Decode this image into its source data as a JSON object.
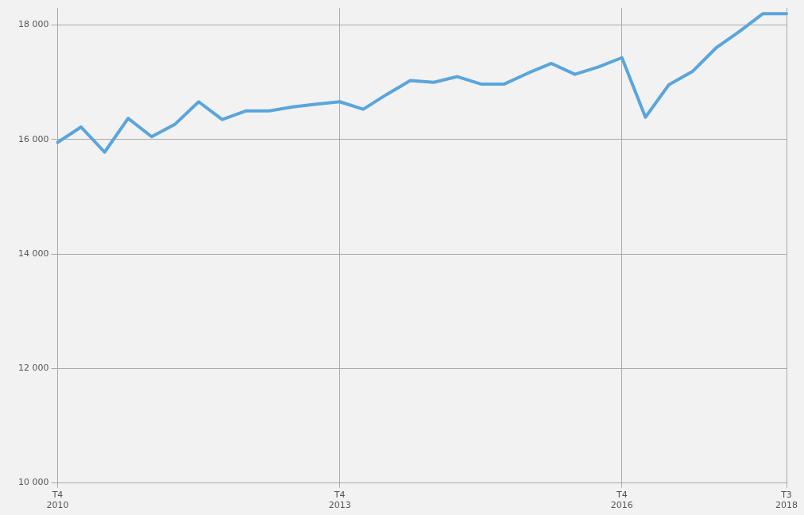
{
  "chart_data": {
    "type": "line",
    "categories": [
      "T4\n2010",
      null,
      null,
      null,
      null,
      null,
      null,
      null,
      null,
      null,
      null,
      null,
      "T4\n2013",
      null,
      null,
      null,
      null,
      null,
      null,
      null,
      null,
      null,
      null,
      null,
      "T4\n2016",
      null,
      null,
      null,
      null,
      null,
      null,
      "T3\n2018"
    ],
    "series": [
      {
        "color": "#5aa5dc",
        "values": [
          15950,
          16220,
          15780,
          16370,
          16050,
          16270,
          16660,
          16350,
          16500,
          16500,
          16570,
          16620,
          16660,
          16530,
          16790,
          17030,
          17000,
          17100,
          16970,
          16970,
          17160,
          17330,
          17140,
          17270,
          17430,
          16390,
          16960,
          17190,
          17600,
          17890,
          18200,
          18200
        ]
      }
    ],
    "ylim": [
      10000,
      18300
    ],
    "yticks": [
      {
        "value": 10000,
        "label": "10 000"
      },
      {
        "value": 12000,
        "label": "12 000"
      },
      {
        "value": 14000,
        "label": "14 000"
      },
      {
        "value": 16000,
        "label": "16 000"
      },
      {
        "value": 18000,
        "label": "18 000"
      }
    ],
    "grid": true,
    "legend": false,
    "marker": "none",
    "line_style": "solid"
  }
}
